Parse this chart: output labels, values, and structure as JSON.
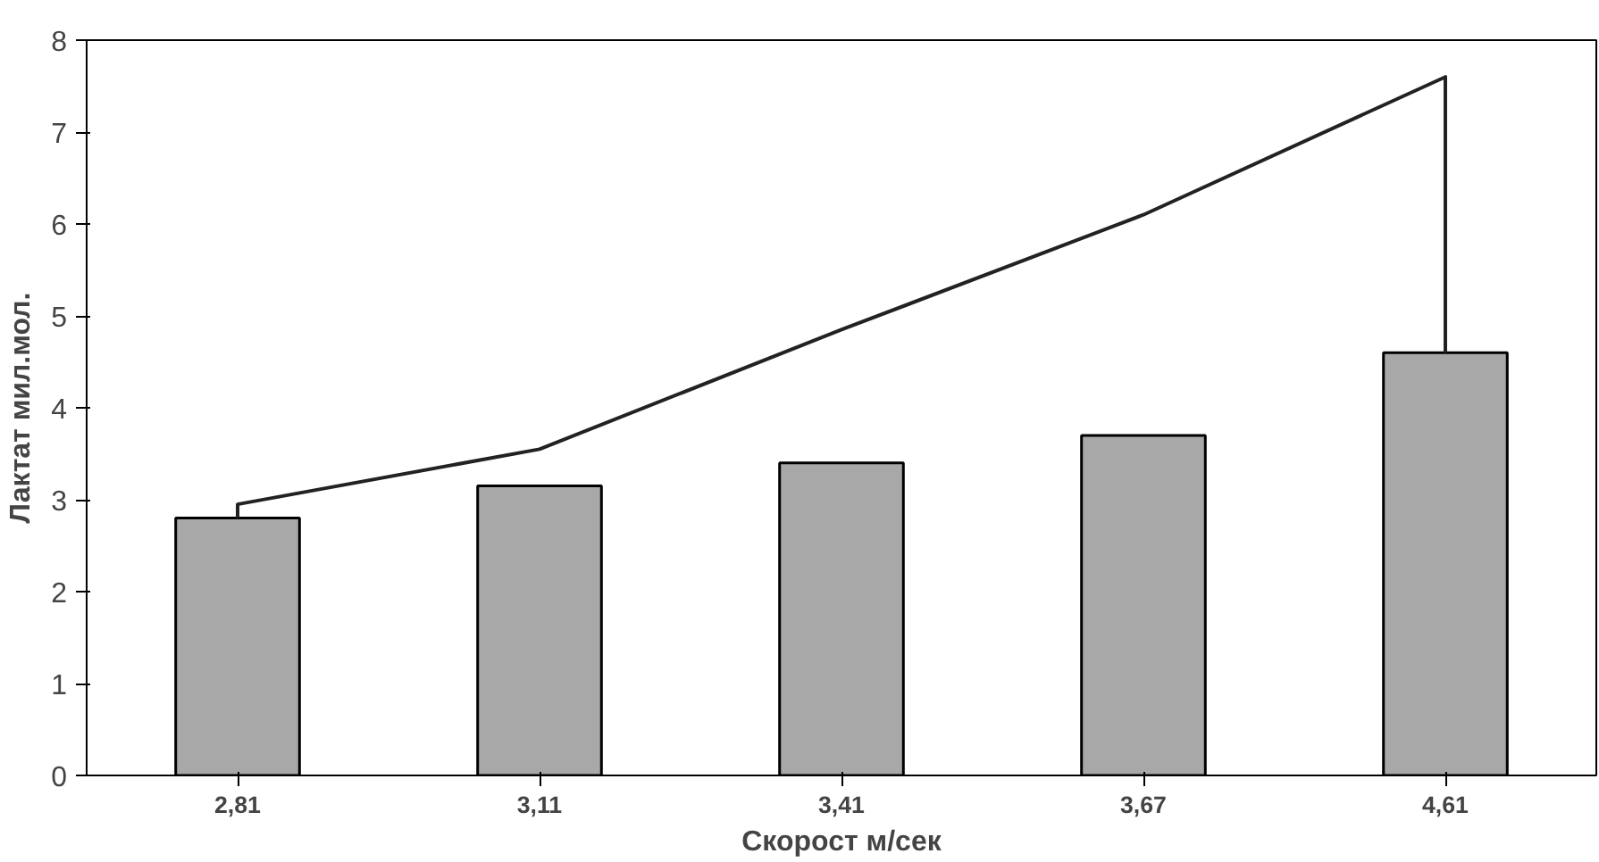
{
  "chart_data": {
    "type": "bar",
    "xlabel": "Скорост м/сек",
    "ylabel": "Лактат мил.мол.",
    "categories": [
      "2,81",
      "3,11",
      "3,41",
      "3,67",
      "4,61"
    ],
    "ylim": [
      0,
      8
    ],
    "yticks": [
      0,
      1,
      2,
      3,
      4,
      5,
      6,
      7,
      8
    ],
    "grid": false,
    "series": [
      {
        "color": "#a8a8a8",
        "values": [
          2.8,
          3.15,
          3.4,
          3.7,
          4.6
        ]
      },
      {
        "type": "line",
        "color": "#222222",
        "x": [
          "2,81",
          "2,81",
          "3,11",
          "3,41",
          "3,67",
          "4,61",
          "4,61"
        ],
        "values": [
          2.8,
          2.95,
          3.55,
          4.85,
          6.1,
          7.6,
          4.6
        ]
      }
    ]
  }
}
